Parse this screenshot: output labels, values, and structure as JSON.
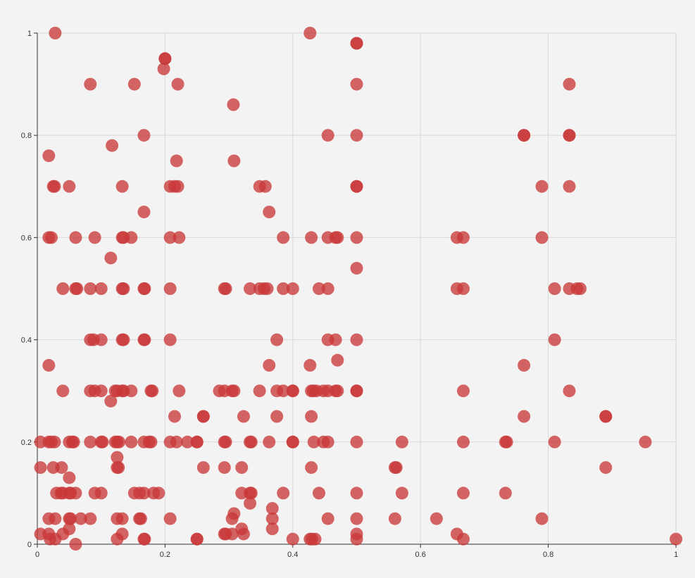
{
  "chart_data": {
    "type": "scatter",
    "title": "",
    "xlabel": "",
    "ylabel": "",
    "xlim": [
      0,
      1
    ],
    "ylim": [
      0,
      1
    ],
    "x_ticks": [
      "0",
      "0.2",
      "0.4",
      "0.6",
      "0.8",
      "1"
    ],
    "y_ticks": [
      "0",
      "0.2",
      "0.4",
      "0.6",
      "0.8",
      "1"
    ],
    "grid": true,
    "legend": "none",
    "point_color": "#c93838",
    "background": "#f3f3f3",
    "points": [
      [
        0.028,
        1.0
      ],
      [
        0.427,
        1.0
      ],
      [
        0.5,
        0.98
      ],
      [
        0.5,
        0.98
      ],
      [
        0.2,
        0.95
      ],
      [
        0.2,
        0.95
      ],
      [
        0.198,
        0.93
      ],
      [
        0.083,
        0.9
      ],
      [
        0.152,
        0.9
      ],
      [
        0.22,
        0.9
      ],
      [
        0.5,
        0.9
      ],
      [
        0.833,
        0.9
      ],
      [
        0.307,
        0.86
      ],
      [
        0.167,
        0.8
      ],
      [
        0.455,
        0.8
      ],
      [
        0.5,
        0.8
      ],
      [
        0.762,
        0.8
      ],
      [
        0.762,
        0.8
      ],
      [
        0.833,
        0.8
      ],
      [
        0.833,
        0.8
      ],
      [
        0.117,
        0.78
      ],
      [
        0.018,
        0.76
      ],
      [
        0.218,
        0.75
      ],
      [
        0.308,
        0.75
      ],
      [
        0.025,
        0.7
      ],
      [
        0.027,
        0.7
      ],
      [
        0.05,
        0.7
      ],
      [
        0.133,
        0.7
      ],
      [
        0.208,
        0.7
      ],
      [
        0.215,
        0.7
      ],
      [
        0.22,
        0.7
      ],
      [
        0.348,
        0.7
      ],
      [
        0.357,
        0.7
      ],
      [
        0.5,
        0.7
      ],
      [
        0.5,
        0.7
      ],
      [
        0.79,
        0.7
      ],
      [
        0.833,
        0.7
      ],
      [
        0.167,
        0.65
      ],
      [
        0.363,
        0.65
      ],
      [
        0.018,
        0.6
      ],
      [
        0.022,
        0.6
      ],
      [
        0.06,
        0.6
      ],
      [
        0.09,
        0.6
      ],
      [
        0.133,
        0.6
      ],
      [
        0.135,
        0.6
      ],
      [
        0.147,
        0.6
      ],
      [
        0.208,
        0.6
      ],
      [
        0.222,
        0.6
      ],
      [
        0.385,
        0.6
      ],
      [
        0.429,
        0.6
      ],
      [
        0.455,
        0.6
      ],
      [
        0.467,
        0.6
      ],
      [
        0.47,
        0.6
      ],
      [
        0.5,
        0.6
      ],
      [
        0.657,
        0.6
      ],
      [
        0.667,
        0.6
      ],
      [
        0.79,
        0.6
      ],
      [
        0.115,
        0.56
      ],
      [
        0.5,
        0.54
      ],
      [
        0.04,
        0.5
      ],
      [
        0.06,
        0.5
      ],
      [
        0.062,
        0.5
      ],
      [
        0.083,
        0.5
      ],
      [
        0.1,
        0.5
      ],
      [
        0.133,
        0.5
      ],
      [
        0.135,
        0.5
      ],
      [
        0.167,
        0.5
      ],
      [
        0.168,
        0.5
      ],
      [
        0.208,
        0.5
      ],
      [
        0.293,
        0.5
      ],
      [
        0.295,
        0.5
      ],
      [
        0.333,
        0.5
      ],
      [
        0.348,
        0.5
      ],
      [
        0.355,
        0.5
      ],
      [
        0.36,
        0.5
      ],
      [
        0.385,
        0.5
      ],
      [
        0.4,
        0.5
      ],
      [
        0.441,
        0.5
      ],
      [
        0.455,
        0.5
      ],
      [
        0.657,
        0.5
      ],
      [
        0.667,
        0.5
      ],
      [
        0.81,
        0.5
      ],
      [
        0.833,
        0.5
      ],
      [
        0.845,
        0.5
      ],
      [
        0.85,
        0.5
      ],
      [
        0.083,
        0.4
      ],
      [
        0.088,
        0.4
      ],
      [
        0.1,
        0.4
      ],
      [
        0.133,
        0.4
      ],
      [
        0.135,
        0.4
      ],
      [
        0.167,
        0.4
      ],
      [
        0.168,
        0.4
      ],
      [
        0.208,
        0.4
      ],
      [
        0.375,
        0.4
      ],
      [
        0.455,
        0.4
      ],
      [
        0.467,
        0.4
      ],
      [
        0.5,
        0.4
      ],
      [
        0.81,
        0.4
      ],
      [
        0.47,
        0.36
      ],
      [
        0.018,
        0.35
      ],
      [
        0.363,
        0.35
      ],
      [
        0.427,
        0.35
      ],
      [
        0.762,
        0.35
      ],
      [
        0.04,
        0.3
      ],
      [
        0.083,
        0.3
      ],
      [
        0.09,
        0.3
      ],
      [
        0.1,
        0.3
      ],
      [
        0.122,
        0.3
      ],
      [
        0.125,
        0.3
      ],
      [
        0.133,
        0.3
      ],
      [
        0.135,
        0.3
      ],
      [
        0.147,
        0.3
      ],
      [
        0.178,
        0.3
      ],
      [
        0.18,
        0.3
      ],
      [
        0.222,
        0.3
      ],
      [
        0.285,
        0.3
      ],
      [
        0.293,
        0.3
      ],
      [
        0.305,
        0.3
      ],
      [
        0.308,
        0.3
      ],
      [
        0.348,
        0.3
      ],
      [
        0.375,
        0.3
      ],
      [
        0.385,
        0.3
      ],
      [
        0.4,
        0.3
      ],
      [
        0.4,
        0.3
      ],
      [
        0.429,
        0.3
      ],
      [
        0.432,
        0.3
      ],
      [
        0.437,
        0.3
      ],
      [
        0.448,
        0.3
      ],
      [
        0.455,
        0.3
      ],
      [
        0.467,
        0.3
      ],
      [
        0.47,
        0.3
      ],
      [
        0.5,
        0.3
      ],
      [
        0.5,
        0.3
      ],
      [
        0.667,
        0.3
      ],
      [
        0.833,
        0.3
      ],
      [
        0.115,
        0.28
      ],
      [
        0.215,
        0.25
      ],
      [
        0.26,
        0.25
      ],
      [
        0.26,
        0.25
      ],
      [
        0.323,
        0.25
      ],
      [
        0.375,
        0.25
      ],
      [
        0.429,
        0.25
      ],
      [
        0.762,
        0.25
      ],
      [
        0.89,
        0.25
      ],
      [
        0.89,
        0.25
      ],
      [
        0.005,
        0.2
      ],
      [
        0.018,
        0.2
      ],
      [
        0.022,
        0.2
      ],
      [
        0.027,
        0.2
      ],
      [
        0.05,
        0.2
      ],
      [
        0.055,
        0.2
      ],
      [
        0.057,
        0.2
      ],
      [
        0.083,
        0.2
      ],
      [
        0.1,
        0.2
      ],
      [
        0.102,
        0.2
      ],
      [
        0.122,
        0.2
      ],
      [
        0.125,
        0.2
      ],
      [
        0.128,
        0.2
      ],
      [
        0.147,
        0.2
      ],
      [
        0.167,
        0.2
      ],
      [
        0.175,
        0.2
      ],
      [
        0.178,
        0.2
      ],
      [
        0.208,
        0.2
      ],
      [
        0.218,
        0.2
      ],
      [
        0.235,
        0.2
      ],
      [
        0.25,
        0.2
      ],
      [
        0.25,
        0.2
      ],
      [
        0.293,
        0.2
      ],
      [
        0.295,
        0.2
      ],
      [
        0.333,
        0.2
      ],
      [
        0.335,
        0.2
      ],
      [
        0.363,
        0.2
      ],
      [
        0.4,
        0.2
      ],
      [
        0.4,
        0.2
      ],
      [
        0.433,
        0.2
      ],
      [
        0.448,
        0.2
      ],
      [
        0.455,
        0.2
      ],
      [
        0.5,
        0.2
      ],
      [
        0.571,
        0.2
      ],
      [
        0.667,
        0.2
      ],
      [
        0.733,
        0.2
      ],
      [
        0.735,
        0.2
      ],
      [
        0.81,
        0.2
      ],
      [
        0.952,
        0.2
      ],
      [
        0.125,
        0.17
      ],
      [
        0.005,
        0.15
      ],
      [
        0.025,
        0.15
      ],
      [
        0.038,
        0.15
      ],
      [
        0.125,
        0.15
      ],
      [
        0.127,
        0.15
      ],
      [
        0.26,
        0.15
      ],
      [
        0.293,
        0.15
      ],
      [
        0.32,
        0.15
      ],
      [
        0.429,
        0.15
      ],
      [
        0.56,
        0.15
      ],
      [
        0.562,
        0.15
      ],
      [
        0.89,
        0.15
      ],
      [
        0.05,
        0.13
      ],
      [
        0.03,
        0.1
      ],
      [
        0.037,
        0.1
      ],
      [
        0.04,
        0.1
      ],
      [
        0.05,
        0.1
      ],
      [
        0.052,
        0.1
      ],
      [
        0.06,
        0.1
      ],
      [
        0.09,
        0.1
      ],
      [
        0.1,
        0.1
      ],
      [
        0.152,
        0.1
      ],
      [
        0.16,
        0.1
      ],
      [
        0.167,
        0.1
      ],
      [
        0.182,
        0.1
      ],
      [
        0.19,
        0.1
      ],
      [
        0.32,
        0.1
      ],
      [
        0.333,
        0.1
      ],
      [
        0.335,
        0.1
      ],
      [
        0.385,
        0.1
      ],
      [
        0.441,
        0.1
      ],
      [
        0.5,
        0.1
      ],
      [
        0.571,
        0.1
      ],
      [
        0.667,
        0.1
      ],
      [
        0.733,
        0.1
      ],
      [
        0.333,
        0.08
      ],
      [
        0.368,
        0.07
      ],
      [
        0.308,
        0.06
      ],
      [
        0.018,
        0.05
      ],
      [
        0.028,
        0.05
      ],
      [
        0.05,
        0.05
      ],
      [
        0.052,
        0.05
      ],
      [
        0.068,
        0.05
      ],
      [
        0.083,
        0.05
      ],
      [
        0.125,
        0.05
      ],
      [
        0.133,
        0.05
      ],
      [
        0.16,
        0.05
      ],
      [
        0.162,
        0.05
      ],
      [
        0.208,
        0.05
      ],
      [
        0.305,
        0.05
      ],
      [
        0.368,
        0.05
      ],
      [
        0.455,
        0.05
      ],
      [
        0.5,
        0.05
      ],
      [
        0.56,
        0.05
      ],
      [
        0.625,
        0.05
      ],
      [
        0.79,
        0.05
      ],
      [
        0.05,
        0.03
      ],
      [
        0.32,
        0.03
      ],
      [
        0.368,
        0.03
      ],
      [
        0.005,
        0.02
      ],
      [
        0.018,
        0.02
      ],
      [
        0.04,
        0.02
      ],
      [
        0.133,
        0.02
      ],
      [
        0.293,
        0.02
      ],
      [
        0.295,
        0.02
      ],
      [
        0.305,
        0.02
      ],
      [
        0.323,
        0.02
      ],
      [
        0.5,
        0.02
      ],
      [
        0.657,
        0.02
      ],
      [
        0.02,
        0.01
      ],
      [
        0.028,
        0.01
      ],
      [
        0.125,
        0.01
      ],
      [
        0.167,
        0.01
      ],
      [
        0.168,
        0.01
      ],
      [
        0.25,
        0.01
      ],
      [
        0.25,
        0.01
      ],
      [
        0.4,
        0.01
      ],
      [
        0.427,
        0.01
      ],
      [
        0.43,
        0.01
      ],
      [
        0.435,
        0.01
      ],
      [
        0.5,
        0.01
      ],
      [
        0.667,
        0.01
      ],
      [
        1.0,
        0.01
      ],
      [
        0.06,
        0.0
      ]
    ]
  }
}
